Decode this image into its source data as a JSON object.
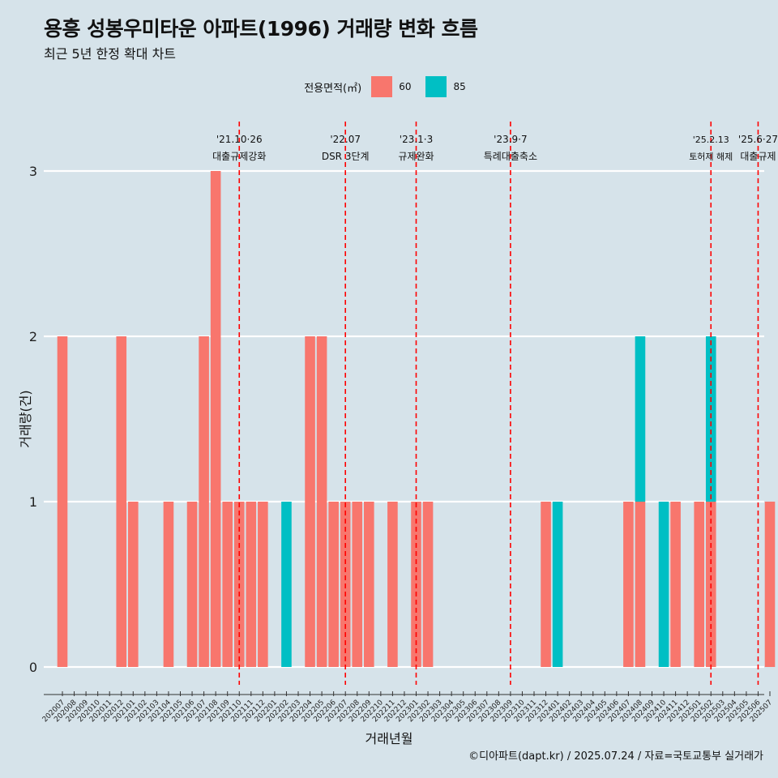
{
  "title": "용흥 성봉우미타운 아파트(1996) 거래량 변화 흐름",
  "subtitle": "최근 5년 한정 확대 차트",
  "caption": "©디아파트(dapt.kr) / 2025.07.24 / 자료=국토교통부 실거래가",
  "legend": {
    "title": "전용면적(㎡)",
    "items": [
      {
        "label": "60",
        "color": "#f8766d"
      },
      {
        "label": "85",
        "color": "#00bfc4"
      }
    ]
  },
  "chart_data": {
    "type": "bar",
    "xlabel": "거래년월",
    "ylabel": "거래량(건)",
    "ylim": [
      0,
      3
    ],
    "yticks": [
      0,
      1,
      2,
      3
    ],
    "grid": true,
    "legend_position": "top",
    "categories": [
      "202007",
      "202008",
      "202009",
      "202010",
      "202011",
      "202012",
      "202101",
      "202102",
      "202103",
      "202104",
      "202105",
      "202106",
      "202107",
      "202108",
      "202109",
      "202110",
      "202111",
      "202112",
      "202201",
      "202202",
      "202203",
      "202204",
      "202205",
      "202206",
      "202207",
      "202208",
      "202209",
      "202210",
      "202211",
      "202212",
      "202301",
      "202302",
      "202303",
      "202304",
      "202305",
      "202306",
      "202307",
      "202308",
      "202309",
      "202310",
      "202311",
      "202312",
      "202401",
      "202402",
      "202403",
      "202404",
      "202405",
      "202406",
      "202407",
      "202408",
      "202409",
      "202410",
      "202411",
      "202412",
      "202501",
      "202502",
      "202503",
      "202504",
      "202505",
      "202506",
      "202507"
    ],
    "series": [
      {
        "name": "60",
        "color": "#f8766d",
        "values": [
          2,
          0,
          0,
          0,
          0,
          2,
          1,
          0,
          0,
          1,
          0,
          1,
          2,
          3,
          1,
          1,
          1,
          1,
          0,
          0,
          0,
          2,
          2,
          1,
          1,
          1,
          1,
          0,
          1,
          0,
          1,
          1,
          0,
          0,
          0,
          0,
          0,
          0,
          0,
          0,
          0,
          1,
          0,
          0,
          0,
          0,
          0,
          0,
          1,
          1,
          0,
          0,
          1,
          0,
          1,
          1,
          0,
          0,
          0,
          0,
          1
        ]
      },
      {
        "name": "85",
        "color": "#00bfc4",
        "values": [
          0,
          0,
          0,
          0,
          0,
          0,
          0,
          0,
          0,
          0,
          0,
          0,
          0,
          0,
          0,
          0,
          0,
          0,
          0,
          1,
          0,
          0,
          0,
          0,
          0,
          0,
          0,
          0,
          0,
          0,
          0,
          0,
          0,
          0,
          0,
          0,
          0,
          0,
          0,
          0,
          0,
          0,
          1,
          0,
          0,
          0,
          0,
          0,
          0,
          1,
          0,
          1,
          0,
          0,
          0,
          1,
          0,
          0,
          0,
          0,
          0
        ]
      }
    ],
    "annotations": [
      {
        "x": "202110",
        "date": "'21.10·26",
        "label": "대출규제강화"
      },
      {
        "x": "202207",
        "date": "'22.07",
        "label": "DSR 3단계"
      },
      {
        "x": "202301",
        "date": "'23.1·3",
        "label": "규제완화"
      },
      {
        "x": "202309",
        "date": "'23.9·7",
        "label": "특례대출축소"
      },
      {
        "x": "202502",
        "date": "'25.2.13",
        "label": "토허제 해제"
      },
      {
        "x": "202506",
        "date": "'25.6·27",
        "label": "대출규제"
      }
    ]
  }
}
